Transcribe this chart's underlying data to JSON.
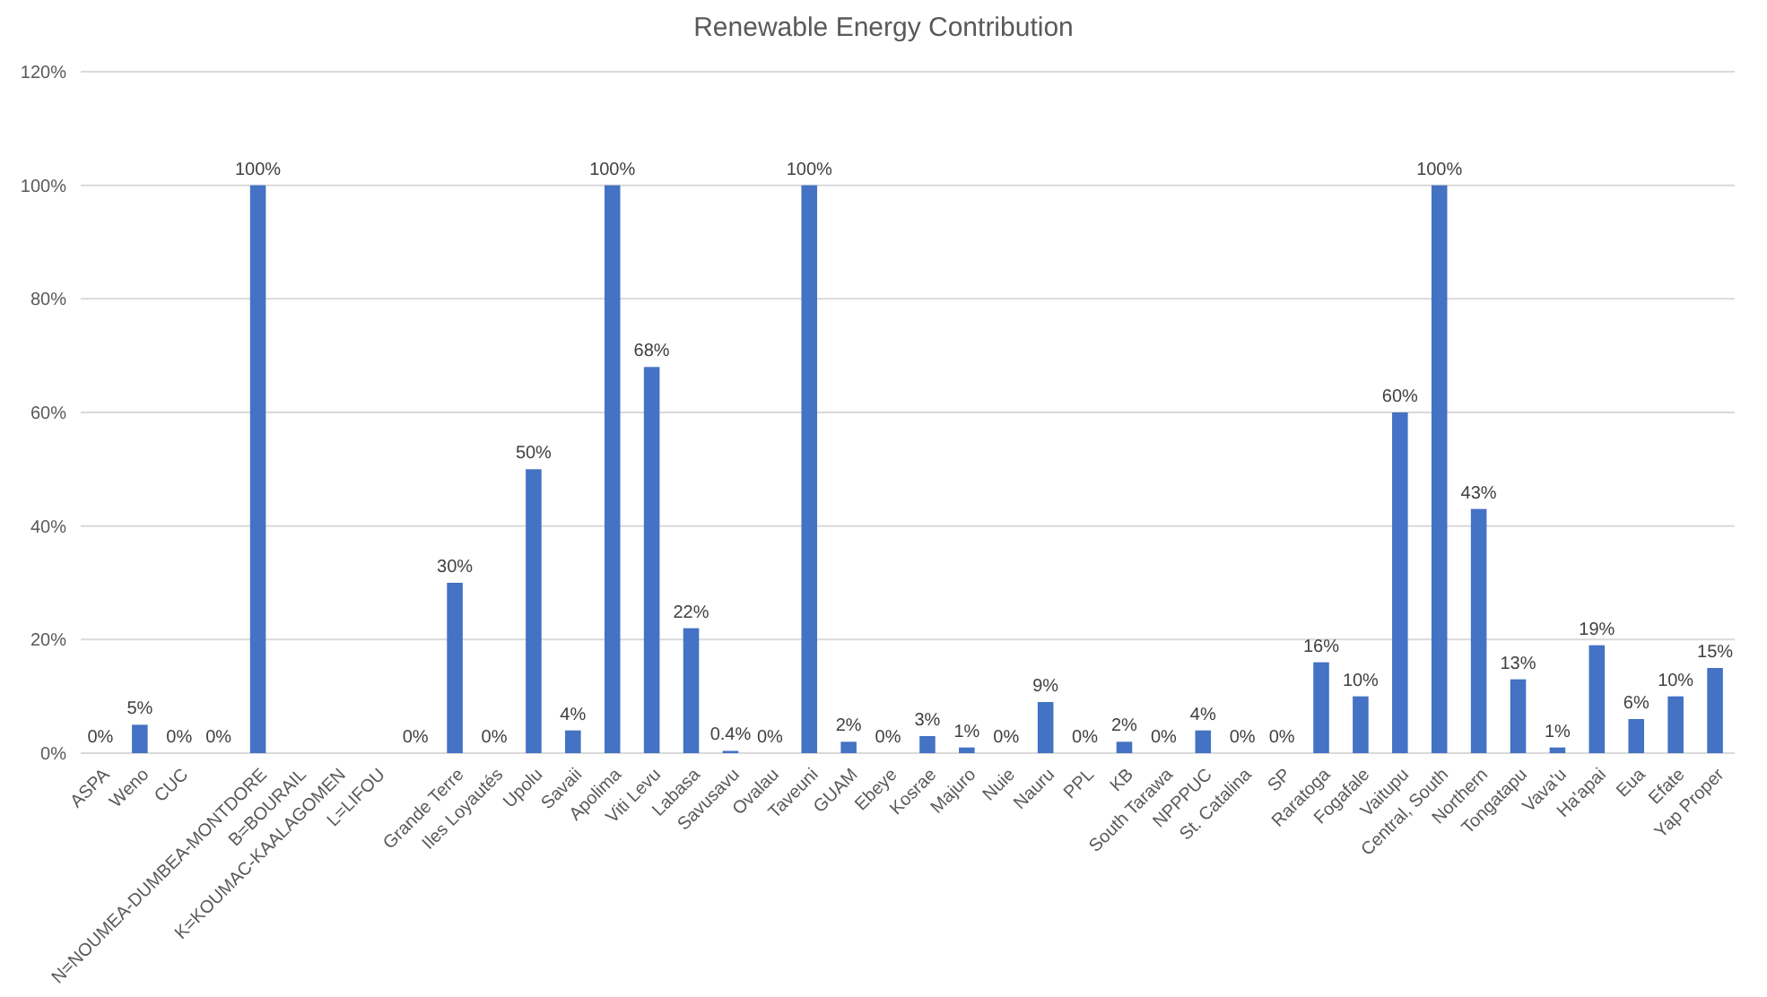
{
  "chart_data": {
    "type": "bar",
    "title": "Renewable Energy Contribution",
    "categories": [
      "ASPA",
      "Weno",
      "CUC",
      null,
      "N=NOUMEA-DUMBEA-MONTDORE",
      "B=BOURAIL",
      "K=KOUMAC-KAALAGOMEN",
      "L=LIFOU",
      null,
      "Grande Terre",
      "Iles Loyautés",
      "Upolu",
      "Savaii",
      "Apolima",
      "Viti Levu",
      "Labasa",
      "Savusavu",
      "Ovalau",
      "Taveuni",
      "GUAM",
      "Ebeye",
      "Kosrae",
      "Majuro",
      "Nuie",
      "Nauru",
      "PPL",
      "KB",
      "South Tarawa",
      "NPPPUC",
      "St. Catalina",
      "SP",
      "Raratoga",
      "Fogafale",
      "Vaitupu",
      "Central, South",
      "Northern",
      "Tongatapu",
      "Vava'u",
      "Ha'apai",
      "Eua",
      "Efate",
      "Yap Proper"
    ],
    "values": [
      0,
      5,
      0,
      0,
      100,
      null,
      null,
      null,
      0,
      30,
      0,
      50,
      4,
      100,
      68,
      22,
      0.4,
      0,
      100,
      2,
      0,
      3,
      1,
      0,
      9,
      0,
      2,
      0,
      4,
      0,
      0,
      16,
      10,
      60,
      100,
      43,
      13,
      1,
      19,
      6,
      10,
      15
    ],
    "value_labels": [
      "0%",
      "5%",
      "0%",
      "0%",
      "100%",
      null,
      null,
      null,
      "0%",
      "30%",
      "0%",
      "50%",
      "4%",
      "100%",
      "68%",
      "22%",
      "0.4%",
      "0%",
      "100%",
      "2%",
      "0%",
      "3%",
      "1%",
      "0%",
      "9%",
      "0%",
      "2%",
      "0%",
      "4%",
      "0%",
      "0%",
      "16%",
      "10%",
      "60%",
      "100%",
      "43%",
      "13%",
      "1%",
      "19%",
      "6%",
      "10%",
      "15%"
    ],
    "color": "#4472c4",
    "ylim": [
      0,
      120
    ],
    "yticks": [
      {
        "value": 0,
        "label": "0%"
      },
      {
        "value": 20,
        "label": "20%"
      },
      {
        "value": 40,
        "label": "40%"
      },
      {
        "value": 60,
        "label": "60%"
      },
      {
        "value": 80,
        "label": "80%"
      },
      {
        "value": 100,
        "label": "100%"
      },
      {
        "value": 120,
        "label": "120%"
      }
    ],
    "grid": "y"
  }
}
